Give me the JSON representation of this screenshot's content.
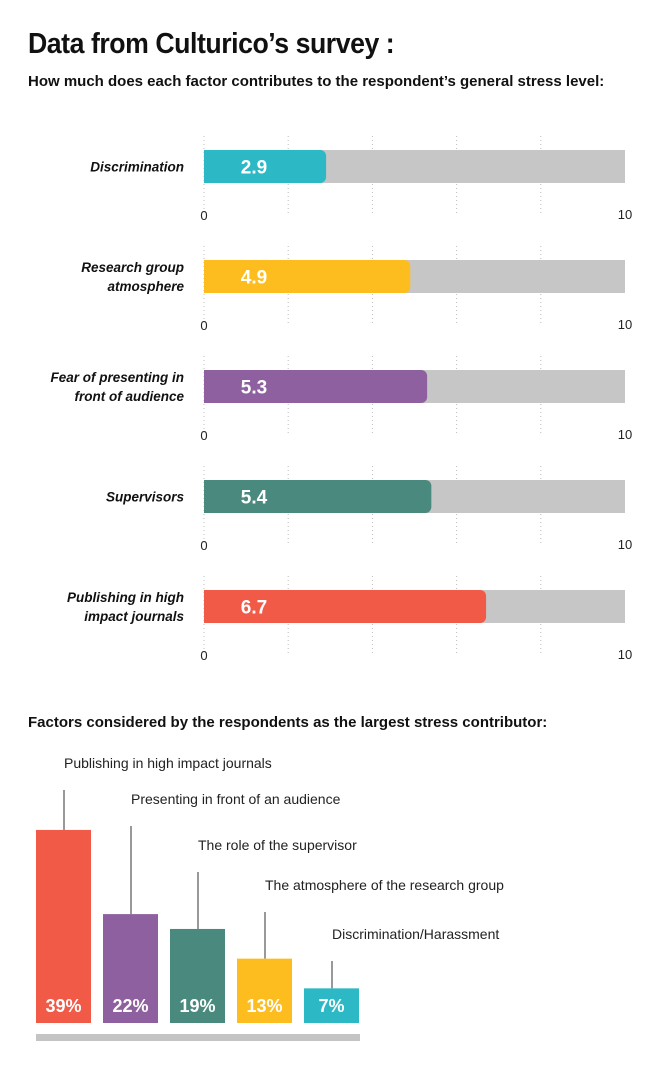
{
  "title": "Data from Culturico’s survey :",
  "subtitle": "How much does each factor contributes to the respondent’s general stress level:",
  "section2_title": "Factors considered by the respondents as the largest stress contributor:",
  "chart_data": [
    {
      "type": "bar",
      "orientation": "horizontal",
      "title": "How much does each factor contributes to the respondent’s general stress level:",
      "xlim": [
        0,
        10
      ],
      "tick_labels": [
        "0",
        "10"
      ],
      "categories": [
        "Discrimination",
        "Research group atmosphere",
        "Fear of presenting in front of audience",
        "Supervisors",
        "Publishing in high impact journals"
      ],
      "category_lines": [
        [
          "Discrimination"
        ],
        [
          "Research group",
          "atmosphere"
        ],
        [
          "Fear of presenting in",
          "front of audience"
        ],
        [
          "Supervisors"
        ],
        [
          "Publishing in high",
          "impact journals"
        ]
      ],
      "values": [
        2.9,
        4.9,
        5.3,
        5.4,
        6.7
      ],
      "value_labels": [
        "2.9",
        "4.9",
        "5.3",
        "5.4",
        "6.7"
      ],
      "colors": [
        "#2cb8c5",
        "#fdbd1f",
        "#8f609f",
        "#4a8a7e",
        "#f05a47"
      ],
      "track_color": "#c6c6c6",
      "grid": true
    },
    {
      "type": "bar",
      "orientation": "vertical",
      "title": "Factors considered by the respondents as the largest stress contributor:",
      "categories": [
        "Publishing in high impact journals",
        "Presenting in front of an audience",
        "The role of the supervisor",
        "The atmosphere of the research group",
        "Discrimination/Harassment"
      ],
      "values": [
        39,
        22,
        19,
        13,
        7
      ],
      "value_labels": [
        "39%",
        "22%",
        "19%",
        "13%",
        "7%"
      ],
      "colors": [
        "#f05a47",
        "#8f609f",
        "#4a8a7e",
        "#fdbd1f",
        "#2cb8c5"
      ],
      "unit": "%"
    }
  ]
}
